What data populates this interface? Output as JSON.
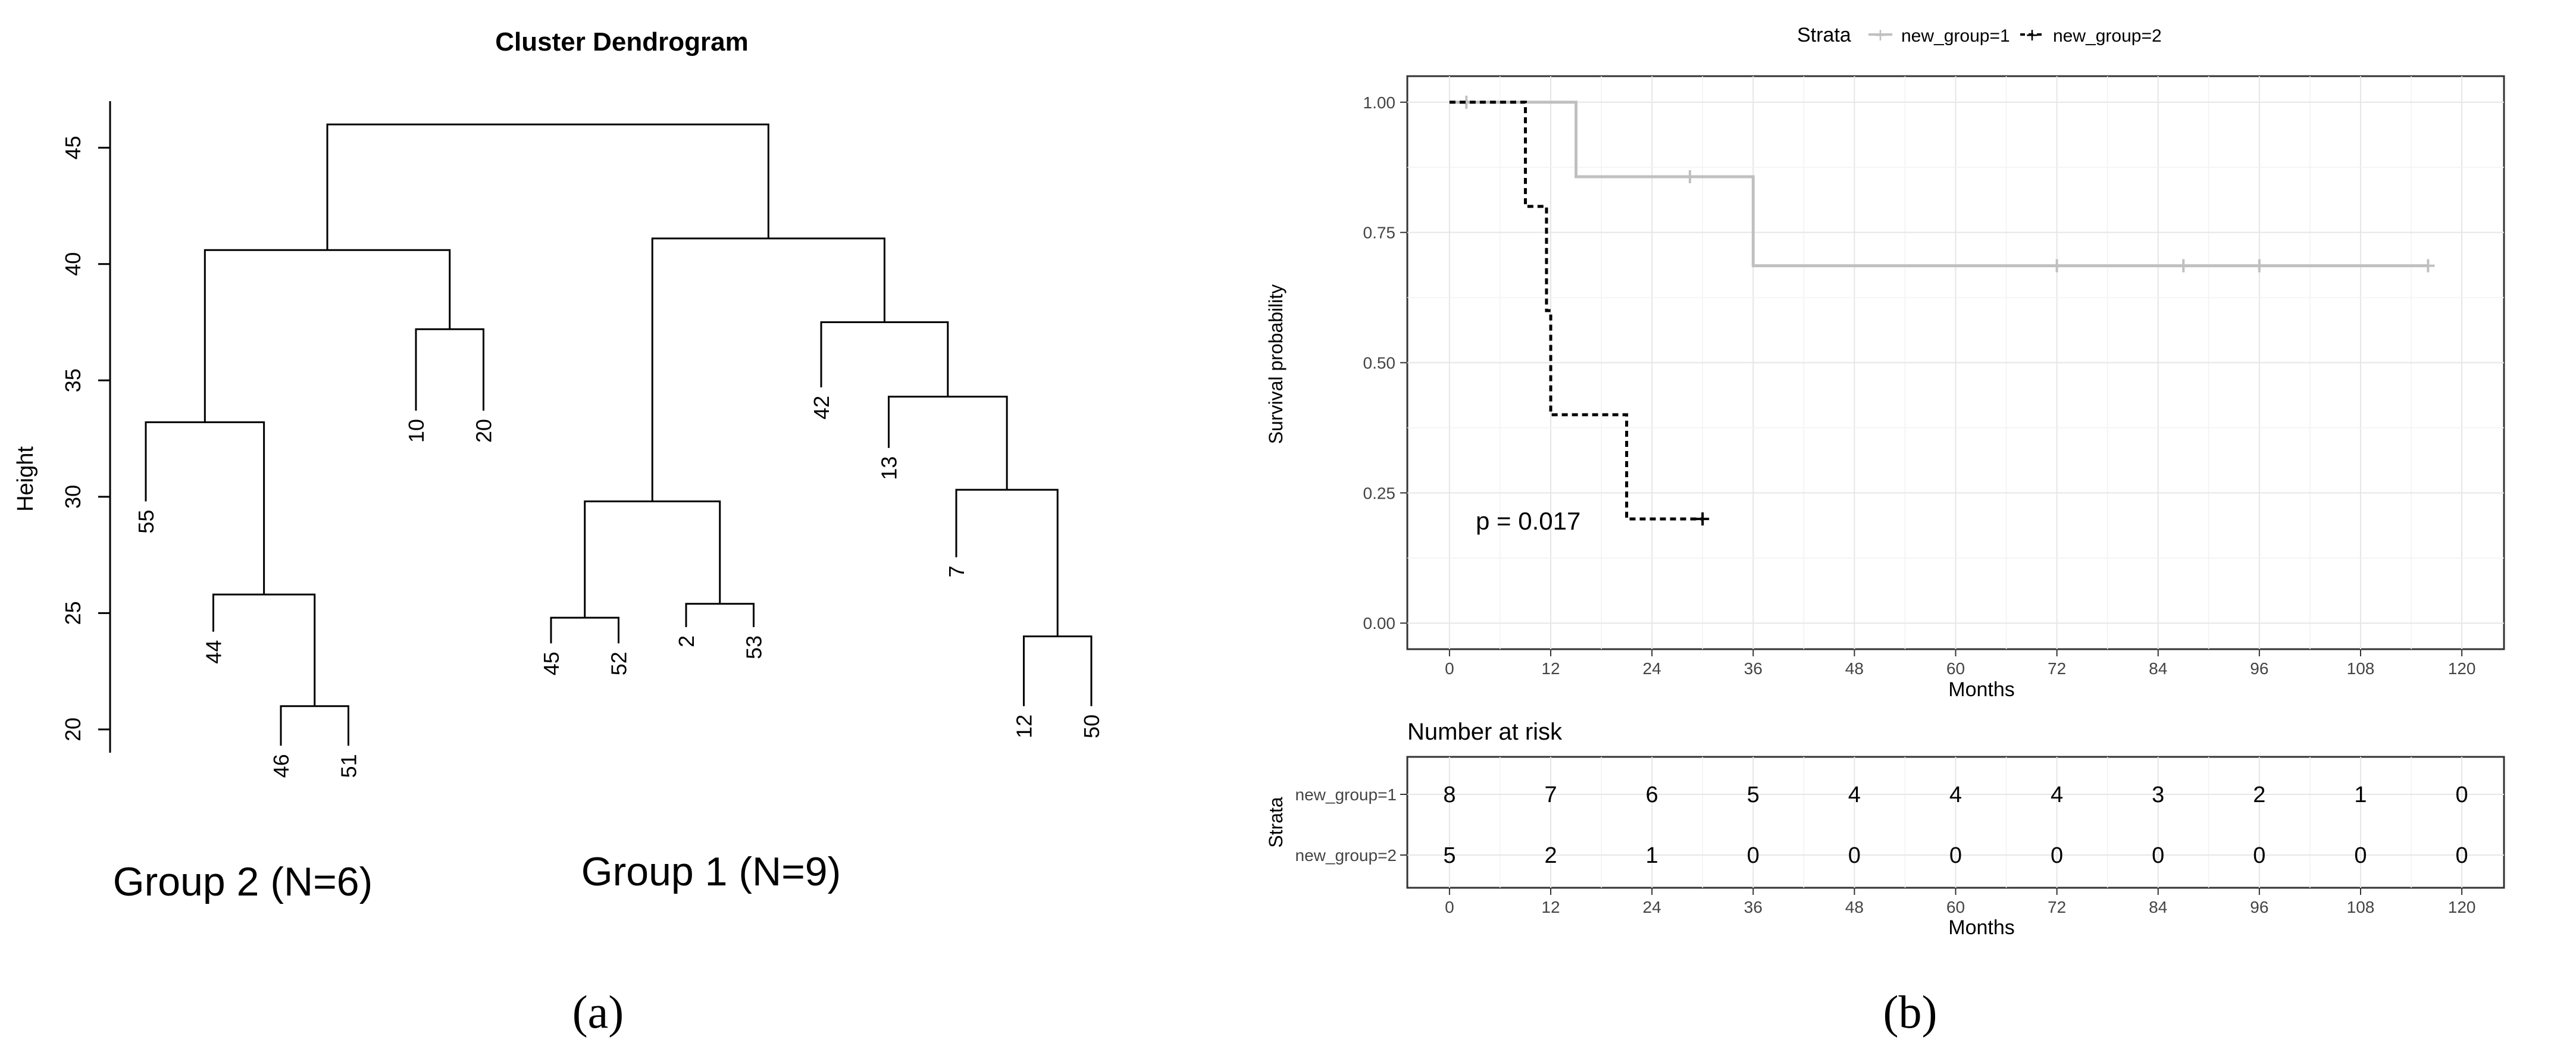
{
  "panels": {
    "a": {
      "label": "(a)"
    },
    "b": {
      "label": "(b)"
    }
  },
  "dendrogram": {
    "title": "Cluster Dendrogram",
    "ylabel": "Height",
    "yticks": [
      20,
      25,
      30,
      35,
      40,
      45
    ],
    "group2_label": "Group 2 (N=6)",
    "group1_label": "Group 1 (N=9)"
  },
  "survival": {
    "legend_title": "Strata",
    "legend_items": [
      "new_group=1",
      "new_group=2"
    ],
    "ylabel": "Survival probability",
    "xlabel": "Months",
    "yticks": [
      "0.00",
      "0.25",
      "0.50",
      "0.75",
      "1.00"
    ],
    "xticks": [
      "0",
      "12",
      "24",
      "36",
      "48",
      "60",
      "72",
      "84",
      "96",
      "108",
      "120"
    ],
    "pvalue": "p = 0.017"
  },
  "risk_table": {
    "title": "Number at risk",
    "ylabel": "Strata",
    "xlabel": "Months",
    "row_labels": [
      "new_group=1",
      "new_group=2"
    ],
    "xticks": [
      "0",
      "12",
      "24",
      "36",
      "48",
      "60",
      "72",
      "84",
      "96",
      "108",
      "120"
    ]
  },
  "chart_data": [
    {
      "type": "dendrogram",
      "title": "Cluster Dendrogram",
      "ylabel": "Height",
      "ylim": [
        19,
        47
      ],
      "leaves": [
        "55",
        "44",
        "46",
        "51",
        "10",
        "20",
        "45",
        "52",
        "2",
        "53",
        "42",
        "13",
        "7",
        "12",
        "50"
      ],
      "leaf_heights": [
        29.8,
        24.2,
        19.3,
        19.3,
        33.7,
        33.7,
        23.7,
        23.7,
        24.4,
        24.4,
        34.7,
        32.1,
        27.4,
        21.0,
        21.0
      ],
      "merges": [
        {
          "left": "L:46",
          "right": "L:51",
          "height": 21.0,
          "id": "m1"
        },
        {
          "left": "L:44",
          "right": "M:m1",
          "height": 25.8,
          "id": "m2"
        },
        {
          "left": "L:55",
          "right": "M:m2",
          "height": 33.2,
          "id": "m3"
        },
        {
          "left": "L:10",
          "right": "L:20",
          "height": 37.2,
          "id": "m4"
        },
        {
          "left": "M:m3",
          "right": "M:m4",
          "height": 40.6,
          "id": "m5"
        },
        {
          "left": "L:45",
          "right": "L:52",
          "height": 24.8,
          "id": "m6"
        },
        {
          "left": "L:2",
          "right": "L:53",
          "height": 25.4,
          "id": "m7"
        },
        {
          "left": "M:m6",
          "right": "M:m7",
          "height": 29.8,
          "id": "m8"
        },
        {
          "left": "L:12",
          "right": "L:50",
          "height": 24.0,
          "id": "m9"
        },
        {
          "left": "L:7",
          "right": "M:m9",
          "height": 30.3,
          "id": "m10"
        },
        {
          "left": "L:13",
          "right": "M:m10",
          "height": 34.3,
          "id": "m11"
        },
        {
          "left": "L:42",
          "right": "M:m11",
          "height": 37.5,
          "id": "m12"
        },
        {
          "left": "M:m8",
          "right": "M:m12",
          "height": 41.1,
          "id": "m13"
        },
        {
          "left": "M:m5",
          "right": "M:m13",
          "height": 46.0,
          "id": "m14"
        }
      ]
    },
    {
      "type": "line",
      "title": "",
      "xlabel": "Months",
      "ylabel": "Survival probability",
      "xlim": [
        -5,
        125
      ],
      "ylim": [
        -0.05,
        1.05
      ],
      "legend": "top",
      "grid": true,
      "series": [
        {
          "name": "new_group=1",
          "color": "#c0c0c0",
          "dash": "solid",
          "steps": [
            [
              0,
              1.0
            ],
            [
              15,
              0.857
            ],
            [
              36,
              0.686
            ],
            [
              116,
              0.686
            ]
          ],
          "censor": [
            [
              2,
              1.0
            ],
            [
              28.5,
              0.857
            ],
            [
              72,
              0.686
            ],
            [
              87,
              0.686
            ],
            [
              96,
              0.686
            ],
            [
              116,
              0.686
            ]
          ]
        },
        {
          "name": "new_group=2",
          "color": "#000000",
          "dash": "dashed",
          "steps": [
            [
              0,
              1.0
            ],
            [
              9,
              0.8
            ],
            [
              11.5,
              0.6
            ],
            [
              12,
              0.4
            ],
            [
              21,
              0.2
            ],
            [
              30,
              0.2
            ]
          ],
          "censor": [
            [
              30,
              0.2
            ]
          ]
        }
      ],
      "annotation": "p = 0.017"
    },
    {
      "type": "table",
      "title": "Number at risk",
      "xlabel": "Months",
      "ylabel": "Strata",
      "columns": [
        0,
        12,
        24,
        36,
        48,
        60,
        72,
        84,
        96,
        108,
        120
      ],
      "rows": [
        {
          "name": "new_group=1",
          "values": [
            8,
            7,
            6,
            5,
            4,
            4,
            4,
            3,
            2,
            1,
            0
          ]
        },
        {
          "name": "new_group=2",
          "values": [
            5,
            2,
            1,
            0,
            0,
            0,
            0,
            0,
            0,
            0,
            0
          ]
        }
      ]
    }
  ]
}
